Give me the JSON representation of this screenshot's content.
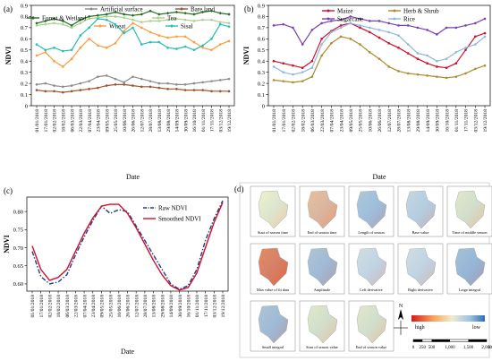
{
  "panel_labels": {
    "a": "(a)",
    "b": "(b)",
    "c": "(c)",
    "d": "(d)"
  },
  "chart_data": [
    {
      "panel": "(a)",
      "type": "line",
      "ylabel": "NDVI",
      "xlabel": "Date",
      "ylim": [
        0,
        0.9
      ],
      "yticks": [
        0,
        0.1,
        0.2,
        0.3,
        0.4,
        0.5,
        0.6,
        0.7,
        0.8,
        0.9
      ],
      "ytick_labels": [
        "0",
        "0.1",
        "0.2",
        "0.3",
        "0.4",
        "0.5",
        "0.6",
        "0.7",
        "0.8",
        "0.9"
      ],
      "x": [
        "01/01/2018",
        "17/01/2018",
        "02/02/2018",
        "18/02/2018",
        "06/03/2018",
        "22/03/2018",
        "07/04/2018",
        "23/04/2018",
        "09/05/2018",
        "25/05/2018",
        "10/06/2018",
        "26/06/2018",
        "12/07/2018",
        "28/07/2018",
        "13/08/2018",
        "29/08/2018",
        "14/09/2018",
        "30/09/2018",
        "16/10/2018",
        "01/11/2018",
        "17/11/2018",
        "03/12/2018",
        "19/12/2018"
      ],
      "legend": [
        "Artificial surface",
        "Bare land",
        "Forest & Wetland",
        "Tea",
        "Wheat",
        "Sisal"
      ],
      "series": [
        {
          "name": "Artificial surface",
          "color": "#8c8c8c",
          "marker": "dot",
          "values": [
            0.19,
            0.2,
            0.18,
            0.17,
            0.18,
            0.2,
            0.22,
            0.26,
            0.27,
            0.24,
            0.21,
            0.26,
            0.24,
            0.22,
            0.2,
            0.2,
            0.19,
            0.19,
            0.2,
            0.21,
            0.22,
            0.23,
            0.24
          ]
        },
        {
          "name": "Bare land",
          "color": "#a0522d",
          "marker": "dot",
          "values": [
            0.14,
            0.13,
            0.13,
            0.12,
            0.13,
            0.14,
            0.15,
            0.16,
            0.18,
            0.19,
            0.19,
            0.18,
            0.17,
            0.17,
            0.16,
            0.15,
            0.15,
            0.14,
            0.14,
            0.14,
            0.13,
            0.13,
            0.13
          ]
        },
        {
          "name": "Forest & Wetland",
          "color": "#1f6b1f",
          "marker": "diamond",
          "values": [
            0.74,
            0.76,
            0.78,
            0.76,
            0.72,
            0.77,
            0.8,
            0.81,
            0.82,
            0.84,
            0.82,
            0.81,
            0.82,
            0.85,
            0.82,
            0.83,
            0.84,
            0.83,
            0.82,
            0.84,
            0.85,
            0.83,
            0.82
          ]
        },
        {
          "name": "Tea",
          "color": "#a8d08d",
          "marker": "dot",
          "values": [
            0.72,
            0.73,
            0.74,
            0.73,
            0.7,
            0.74,
            0.78,
            0.79,
            0.8,
            0.8,
            0.79,
            0.77,
            0.75,
            0.76,
            0.76,
            0.77,
            0.78,
            0.77,
            0.76,
            0.77,
            0.77,
            0.75,
            0.74
          ]
        },
        {
          "name": "Wheat",
          "color": "#ff9a3c",
          "marker": "dot",
          "values": [
            0.45,
            0.48,
            0.4,
            0.35,
            0.42,
            0.52,
            0.6,
            0.54,
            0.52,
            0.56,
            0.67,
            0.74,
            0.7,
            0.66,
            0.63,
            0.61,
            0.62,
            0.62,
            0.57,
            0.52,
            0.5,
            0.55,
            0.58
          ]
        },
        {
          "name": "Sisal",
          "color": "#26bdb0",
          "marker": "dot",
          "values": [
            0.55,
            0.5,
            0.52,
            0.49,
            0.5,
            0.63,
            0.7,
            0.78,
            0.77,
            0.73,
            0.65,
            0.7,
            0.55,
            0.57,
            0.57,
            0.52,
            0.51,
            0.53,
            0.5,
            0.54,
            0.6,
            0.73,
            0.71
          ]
        }
      ]
    },
    {
      "panel": "(b)",
      "type": "line",
      "ylabel": "NDVI",
      "xlabel": "Date",
      "ylim": [
        0,
        0.9
      ],
      "yticks": [
        0,
        0.1,
        0.2,
        0.3,
        0.4,
        0.5,
        0.6,
        0.7,
        0.8,
        0.9
      ],
      "ytick_labels": [
        "0",
        "0.1",
        "0.2",
        "0.3",
        "0.4",
        "0.5",
        "0.6",
        "0.7",
        "0.8",
        "0.9"
      ],
      "x": [
        "01/01/2018",
        "17/01/2018",
        "02/02/2018",
        "18/02/2018",
        "06/03/2018",
        "22/03/2018",
        "07/04/2018",
        "23/04/2018",
        "09/05/2018",
        "25/05/2018",
        "10/06/2018",
        "26/06/2018",
        "12/07/2018",
        "28/07/2018",
        "13/08/2018",
        "29/08/2018",
        "14/09/2018",
        "30/09/2018",
        "16/10/2018",
        "01/11/2018",
        "17/11/2018",
        "03/12/2018",
        "19/12/2018"
      ],
      "legend": [
        "Maize",
        "Herb & Shrub",
        "Sugarcane",
        "Rice"
      ],
      "series": [
        {
          "name": "Maize",
          "color": "#d0102a",
          "marker": "dot",
          "values": [
            0.4,
            0.38,
            0.36,
            0.34,
            0.4,
            0.6,
            0.67,
            0.72,
            0.74,
            0.7,
            0.66,
            0.61,
            0.56,
            0.52,
            0.47,
            0.42,
            0.38,
            0.35,
            0.34,
            0.38,
            0.5,
            0.62,
            0.65
          ]
        },
        {
          "name": "Herb & Shrub",
          "color": "#b08a2e",
          "marker": "dot",
          "values": [
            0.23,
            0.22,
            0.21,
            0.22,
            0.26,
            0.45,
            0.56,
            0.62,
            0.6,
            0.55,
            0.48,
            0.42,
            0.35,
            0.31,
            0.29,
            0.28,
            0.27,
            0.26,
            0.25,
            0.26,
            0.29,
            0.33,
            0.36
          ]
        },
        {
          "name": "Sugarcane",
          "color": "#7b3fb0",
          "marker": "dot",
          "values": [
            0.72,
            0.73,
            0.7,
            0.55,
            0.68,
            0.74,
            0.76,
            0.77,
            0.8,
            0.78,
            0.76,
            0.76,
            0.74,
            0.72,
            0.72,
            0.7,
            0.68,
            0.64,
            0.7,
            0.7,
            0.72,
            0.74,
            0.78
          ]
        },
        {
          "name": "Rice",
          "color": "#8fb8e0",
          "marker": "dot",
          "values": [
            0.35,
            0.3,
            0.28,
            0.3,
            0.34,
            0.55,
            0.66,
            0.7,
            0.74,
            0.72,
            0.7,
            0.68,
            0.66,
            0.63,
            0.55,
            0.47,
            0.45,
            0.4,
            0.42,
            0.48,
            0.52,
            0.55,
            0.62
          ]
        }
      ]
    },
    {
      "panel": "(c)",
      "type": "line",
      "ylabel": "NDVI",
      "xlabel": "Date",
      "ylim": [
        0.58,
        0.84
      ],
      "yticks": [
        0.6,
        0.65,
        0.7,
        0.75,
        0.8
      ],
      "ytick_labels": [
        "0.60",
        "0.65",
        "0.70",
        "0.75",
        "0.80"
      ],
      "x": [
        "01/01/2018",
        "17/01/2018",
        "02/02/2018",
        "18/02/2018",
        "06/03/2018",
        "22/03/2018",
        "07/04/2018",
        "23/04/2018",
        "09/05/2018",
        "25/05/2018",
        "10/06/2018",
        "26/06/2018",
        "12/07/2018",
        "28/07/2018",
        "13/08/2018",
        "29/08/2018",
        "14/09/2018",
        "30/09/2018",
        "16/10/2018",
        "01/11/2018",
        "17/11/2018",
        "03/12/2018",
        "19/12/2018"
      ],
      "legend": [
        "Raw NDVI",
        "Smoothed NDVI"
      ],
      "series": [
        {
          "name": "Raw NDVI",
          "color": "#1f3b8c",
          "style": "dashdot",
          "values": [
            0.69,
            0.62,
            0.6,
            0.605,
            0.625,
            0.68,
            0.73,
            0.775,
            0.815,
            0.795,
            0.805,
            0.8,
            0.76,
            0.72,
            0.68,
            0.64,
            0.6,
            0.585,
            0.595,
            0.64,
            0.72,
            0.78,
            0.83
          ]
        },
        {
          "name": "Smoothed NDVI",
          "color": "#d0102a",
          "style": "solid",
          "values": [
            0.705,
            0.64,
            0.61,
            0.618,
            0.64,
            0.69,
            0.74,
            0.782,
            0.815,
            0.82,
            0.82,
            0.795,
            0.755,
            0.71,
            0.665,
            0.625,
            0.595,
            0.583,
            0.59,
            0.63,
            0.7,
            0.77,
            0.825
          ]
        }
      ]
    }
  ],
  "maps": {
    "tiles": [
      "Start of season time",
      "End of season time",
      "Length of season",
      "Base value",
      "Time of middle season",
      "Max value of fit data",
      "Amplitude",
      "Left derivative",
      "Right derivative",
      "Large integral",
      "Small integral",
      "Start of season value",
      "End of season value"
    ],
    "legend_high": "high",
    "legend_low": "low",
    "north": "N",
    "scale_labels": [
      "0",
      "250",
      "500",
      "1,000",
      "1,500",
      "2,000"
    ],
    "scale_unit": "km"
  }
}
